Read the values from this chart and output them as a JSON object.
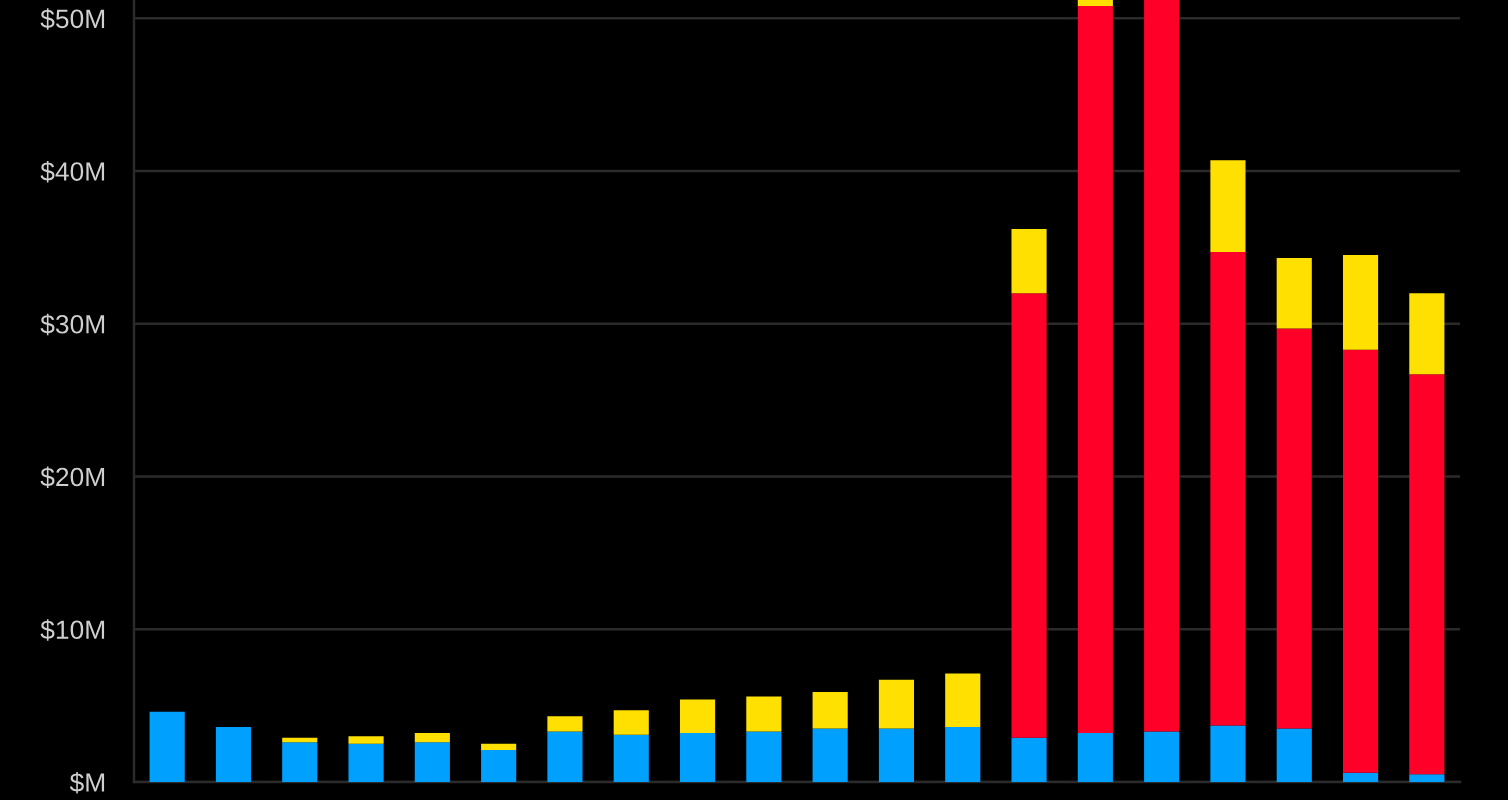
{
  "chart_data": {
    "type": "bar",
    "stacked": true,
    "categories": [
      null,
      null,
      null,
      null,
      null,
      null,
      null,
      null,
      null,
      null,
      null,
      null,
      null,
      null,
      null,
      null,
      null,
      null,
      null,
      null
    ],
    "series": [
      {
        "color": "#00a0ff",
        "values": [
          4.6,
          3.6,
          2.6,
          2.5,
          2.6,
          2.1,
          3.3,
          3.1,
          3.2,
          3.3,
          3.5,
          3.5,
          3.6,
          2.9,
          3.2,
          3.3,
          3.7,
          3.5,
          0.6,
          0.5
        ]
      },
      {
        "color": "#ff0028",
        "values": [
          null,
          null,
          null,
          null,
          null,
          null,
          null,
          null,
          null,
          null,
          null,
          null,
          null,
          29.1,
          47.6,
          47.9,
          31.0,
          26.2,
          27.7,
          26.2
        ]
      },
      {
        "color": "#ffe000",
        "values": [
          null,
          null,
          0.3,
          0.5,
          0.6,
          0.4,
          1.0,
          1.6,
          2.2,
          2.3,
          2.4,
          3.2,
          3.5,
          4.2,
          0.4,
          null,
          6.0,
          4.6,
          6.2,
          5.3
        ]
      }
    ],
    "ylim": [
      0,
      51.2
    ],
    "yticks": [
      {
        "value": 0,
        "label": "$M"
      },
      {
        "value": 10,
        "label": "$10M"
      },
      {
        "value": 20,
        "label": "$20M"
      },
      {
        "value": 30,
        "label": "$30M"
      },
      {
        "value": 40,
        "label": "$40M"
      },
      {
        "value": 50,
        "label": "$50M"
      }
    ],
    "grid": "y",
    "tick_labels": "y"
  }
}
